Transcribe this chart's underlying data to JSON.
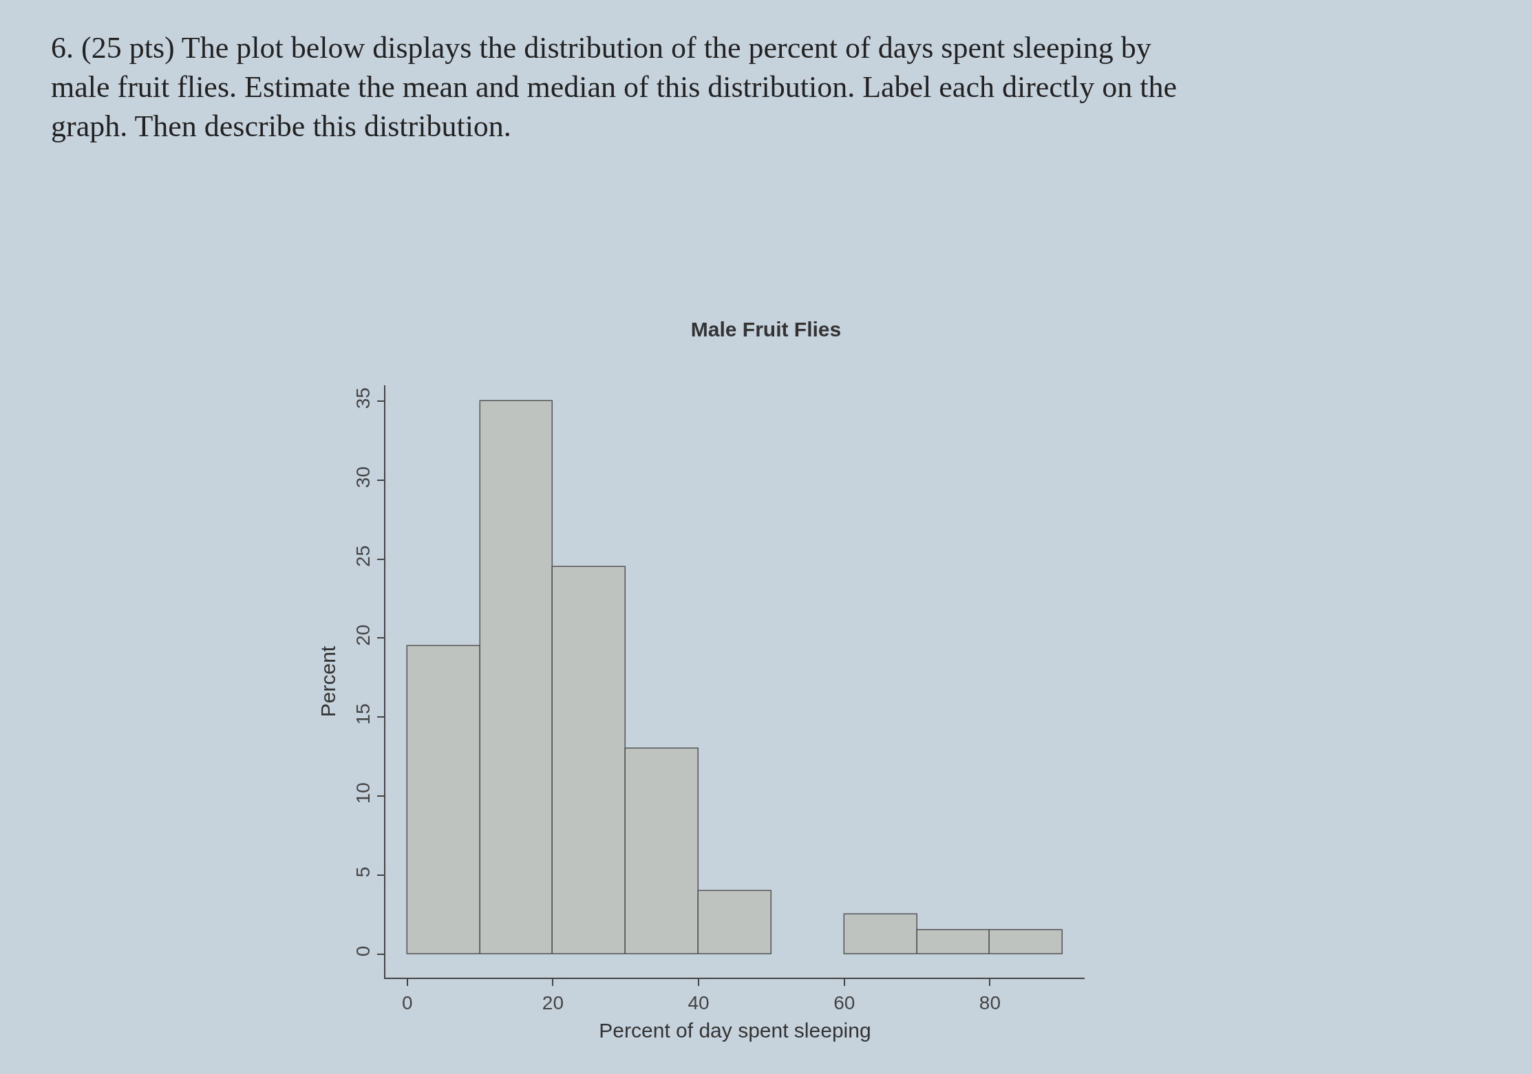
{
  "chart_data": {
    "type": "histogram",
    "title": "Male Fruit Flies",
    "xlabel": "Percent of day spent sleeping",
    "ylabel": "Percent",
    "annotations": [
      "6. (25 pts) The plot below displays the distribution of the percent of days spent sleeping by male fruit flies. Estimate the mean and median of this distribution. Label each directly on the graph. Then describe this distribution."
    ],
    "bins": [
      0,
      10,
      20,
      30,
      40,
      50,
      60,
      70,
      80,
      90
    ],
    "values": [
      19.5,
      35,
      24.5,
      13,
      4,
      0,
      2.5,
      1.5,
      1.5
    ],
    "color": "#bfc3c0",
    "xlim": [
      -3,
      93
    ],
    "ylim": [
      -1.5,
      36
    ],
    "xticks": [
      0,
      20,
      40,
      60,
      80
    ],
    "yticks": [
      0,
      5,
      10,
      15,
      20,
      25,
      30,
      35
    ],
    "grid": false
  }
}
